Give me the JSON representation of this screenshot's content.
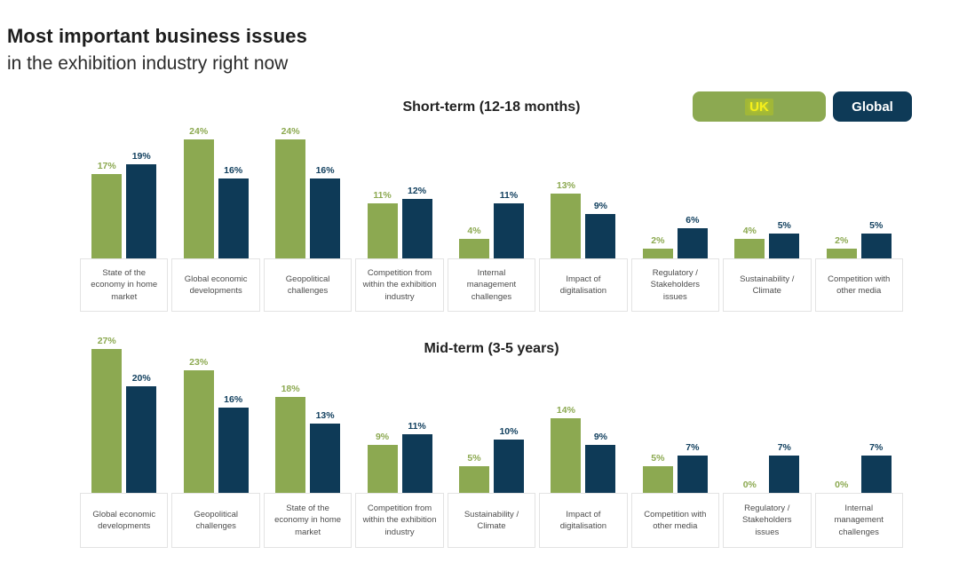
{
  "page": {
    "title_bold": "Most important business issues",
    "title_regular": "in the exhibition industry right now"
  },
  "legend": {
    "items": [
      {
        "label": "UK",
        "color": "#8CA951",
        "text_color": "#F5F01B"
      },
      {
        "label": "Global",
        "color": "#0E3A57",
        "text_color": "#FFFFFF"
      }
    ]
  },
  "colors": {
    "uk_bar": "#8CA951",
    "global_bar": "#0E3A57",
    "uk_value_label": "#8CA951",
    "global_value_label": "#12405F"
  },
  "chart_data": [
    {
      "type": "bar",
      "title": "Short-term (12-18 months)",
      "value_suffix": "%",
      "ylim": [
        0,
        27
      ],
      "grid": false,
      "data_labels": true,
      "legend_position": "top-right",
      "categories": [
        "State of the economy in home market",
        "Global economic developments",
        "Geopolitical challenges",
        "Competition from within the exhibition industry",
        "Internal management challenges",
        "Impact of digitalisation",
        "Regulatory / Stakeholders issues",
        "Sustainability / Climate",
        "Competition with other media"
      ],
      "series": [
        {
          "name": "UK",
          "values": [
            17,
            24,
            24,
            11,
            4,
            13,
            2,
            4,
            2
          ]
        },
        {
          "name": "Global",
          "values": [
            19,
            16,
            16,
            12,
            11,
            9,
            6,
            5,
            5
          ]
        }
      ]
    },
    {
      "type": "bar",
      "title": "Mid-term (3-5 years)",
      "value_suffix": "%",
      "ylim": [
        0,
        30
      ],
      "grid": false,
      "data_labels": true,
      "legend_position": "top-right",
      "categories": [
        "Global economic developments",
        "Geopolitical challenges",
        "State of the economy in home market",
        "Competition from within the exhibition industry",
        "Sustainability / Climate",
        "Impact of digitalisation",
        "Competition with other media",
        "Regulatory / Stakeholders issues",
        "Internal management challenges"
      ],
      "series": [
        {
          "name": "UK",
          "values": [
            27,
            23,
            18,
            9,
            5,
            14,
            5,
            0,
            0
          ]
        },
        {
          "name": "Global",
          "values": [
            20,
            16,
            13,
            11,
            10,
            9,
            7,
            7,
            7
          ]
        }
      ]
    }
  ]
}
